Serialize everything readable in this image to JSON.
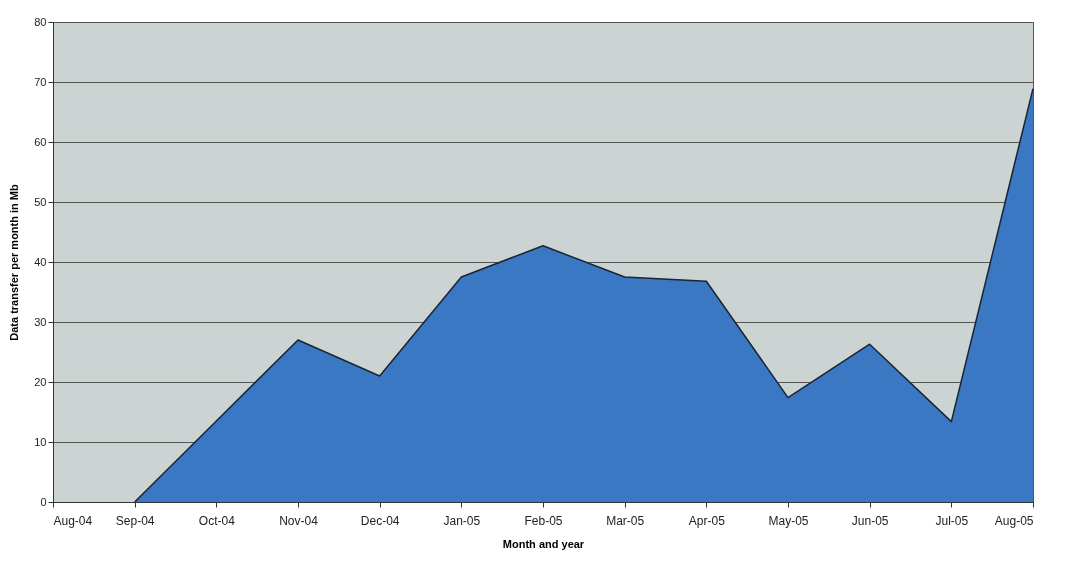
{
  "chart_data": {
    "type": "area",
    "xlabel": "Month and year",
    "ylabel": "Data transfer per month in Mb",
    "categories": [
      "Aug-04",
      "Sep-04",
      "Oct-04",
      "Nov-04",
      "Dec-04",
      "Jan-05",
      "Feb-05",
      "Mar-05",
      "Apr-05",
      "May-05",
      "Jun-05",
      "Jul-05",
      "Aug-05"
    ],
    "series": [
      {
        "color": "#3a78c4",
        "values": [
          null,
          0,
          13.5,
          27,
          21,
          37.5,
          42.7,
          37.5,
          36.8,
          17.4,
          26.3,
          13.4,
          68.9
        ]
      }
    ],
    "ylim": [
      0,
      80
    ],
    "yticks": [
      0,
      10,
      20,
      30,
      40,
      50,
      60,
      70,
      80
    ],
    "grid": "y"
  }
}
